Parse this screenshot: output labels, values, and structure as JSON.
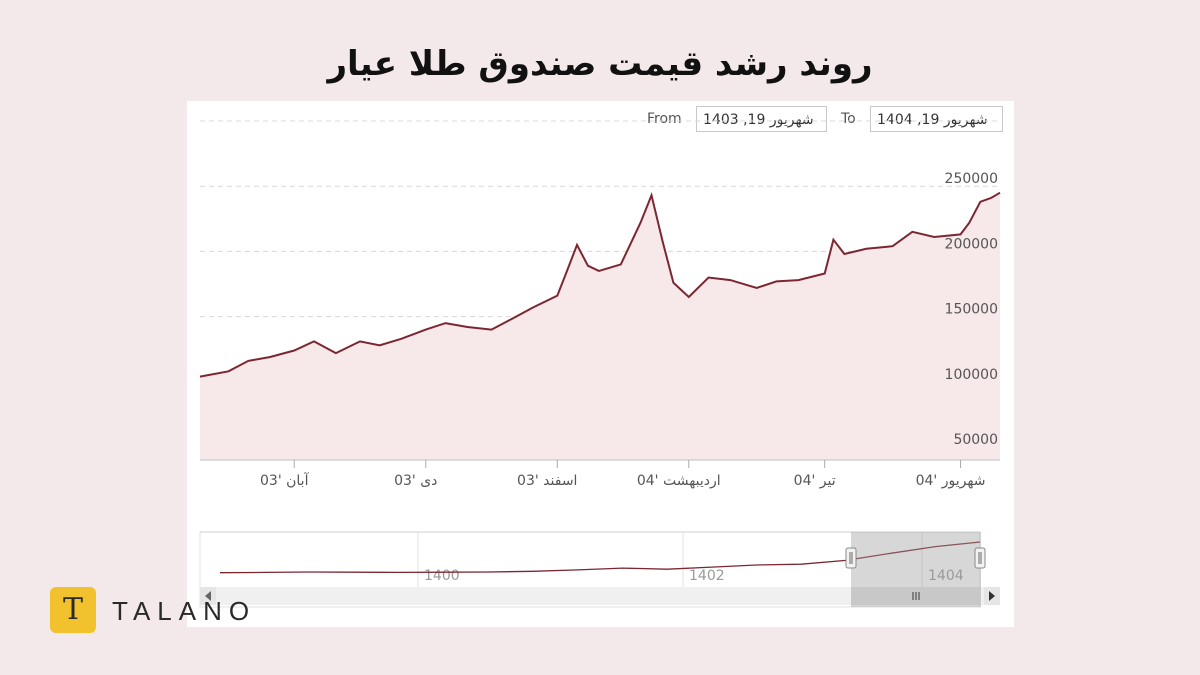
{
  "title": "روند رشد قیمت صندوق طلا عیار",
  "range_selector": {
    "from_label": "From",
    "from_value": "شهریور 19, 1403",
    "to_label": "To",
    "to_value": "شهریور 19, 1404"
  },
  "brand": {
    "logo_letter": "T",
    "name": "TALANO"
  },
  "colors": {
    "line": "#7b2731",
    "fill": "#f7e8e9",
    "background": "#f3e9ea",
    "logo": "#f2c12e"
  },
  "chart_data": {
    "type": "area",
    "title": "روند رشد قیمت صندوق طلا عیار",
    "x_tick_labels": [
      "آبان '03",
      "دی '03",
      "اسفند '03",
      "اردیبهشت '04",
      "تیر '04",
      "شهریور '04"
    ],
    "y_ticks": [
      50000,
      100000,
      150000,
      200000,
      250000
    ],
    "ylim": [
      40000,
      300000
    ],
    "grid": true,
    "series": [
      {
        "x": [
          "1403-06-19",
          "1403-07-01",
          "1403-07-10",
          "1403-07-20",
          "1403-08-01",
          "1403-08-10",
          "1403-08-20",
          "1403-09-01",
          "1403-09-10",
          "1403-09-20",
          "1403-10-01",
          "1403-10-10",
          "1403-10-20",
          "1403-11-01",
          "1403-11-10",
          "1403-11-20",
          "1403-12-01",
          "1403-12-05",
          "1403-12-10",
          "1403-12-15",
          "1403-12-20",
          "1404-01-01",
          "1404-01-10",
          "1404-01-15",
          "1404-01-20",
          "1404-01-25",
          "1404-02-01",
          "1404-02-10",
          "1404-02-20",
          "1404-03-01",
          "1404-03-10",
          "1404-03-20",
          "1404-04-01",
          "1404-04-05",
          "1404-04-10",
          "1404-04-20",
          "1404-05-01",
          "1404-05-10",
          "1404-05-20",
          "1404-06-01",
          "1404-06-05",
          "1404-06-10",
          "1404-06-15",
          "1404-06-19"
        ],
        "values": [
          104000,
          108000,
          116000,
          119000,
          124000,
          131000,
          122000,
          131000,
          128000,
          133000,
          140000,
          145000,
          142000,
          140000,
          148000,
          157000,
          166000,
          183000,
          205000,
          189000,
          185000,
          190000,
          222000,
          243000,
          208000,
          176000,
          165000,
          180000,
          178000,
          172000,
          177000,
          178000,
          183000,
          209000,
          198000,
          202000,
          204000,
          215000,
          211000,
          213000,
          222000,
          238000,
          241000,
          245000
        ]
      }
    ],
    "navigator": {
      "tick_labels": [
        "1400",
        "1402",
        "1404"
      ],
      "series": [
        {
          "values": [
            58000,
            60000,
            62000,
            61000,
            60000,
            61000,
            62000,
            66000,
            74000,
            84000,
            78000,
            90000,
            102000,
            106000,
            128000,
            168000,
            206000,
            232000
          ]
        }
      ]
    }
  }
}
